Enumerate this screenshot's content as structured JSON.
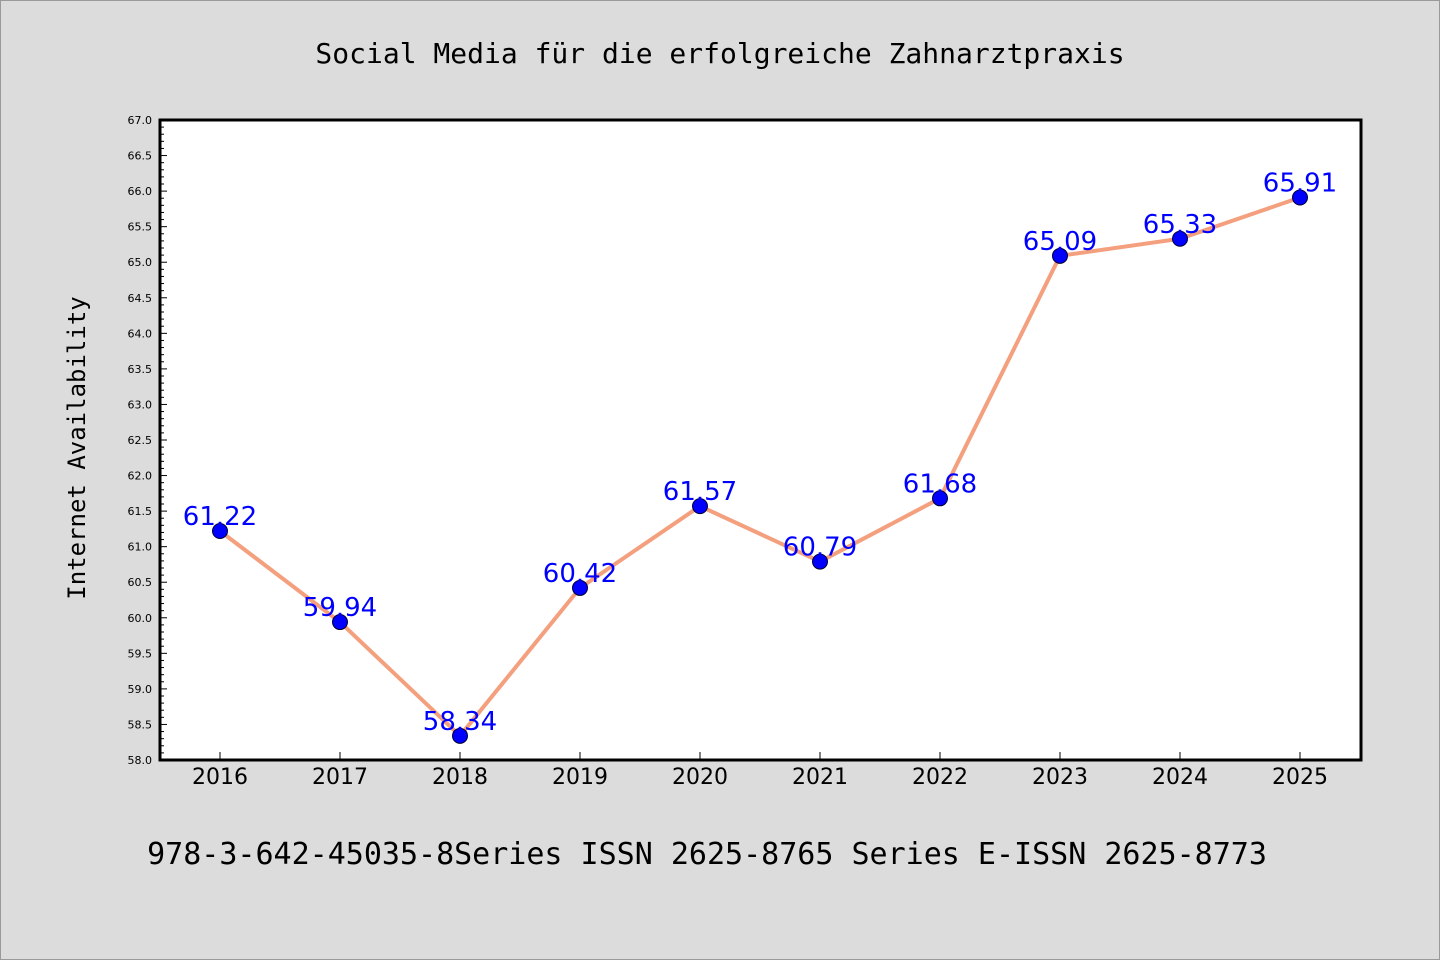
{
  "colors": {
    "background": "#dcdcdc",
    "plot_background": "#ffffff",
    "line": "#f4a07e",
    "marker": "#0000ff",
    "data_label": "#0000ff"
  },
  "footer_text": "978-3-642-45035-8Series ISSN 2625-8765 Series E-ISSN 2625-8773",
  "chart_data": {
    "type": "line",
    "title": "Social Media für die erfolgreiche Zahnarztpraxis",
    "xlabel": "",
    "ylabel": "Internet Availability",
    "categories": [
      "2016",
      "2017",
      "2018",
      "2019",
      "2020",
      "2021",
      "2022",
      "2023",
      "2024",
      "2025"
    ],
    "series": [
      {
        "values": [
          61.22,
          59.94,
          58.34,
          60.42,
          61.57,
          60.79,
          61.68,
          65.09,
          65.33,
          65.91
        ],
        "labels": [
          "61.22",
          "59.94",
          "58.34",
          "60.42",
          "61.57",
          "60.79",
          "61.68",
          "65.09",
          "65.33",
          "65.91"
        ]
      }
    ],
    "ylim": [
      58.0,
      67.0
    ],
    "yticks": [
      "58.0",
      "58.5",
      "59.0",
      "59.5",
      "60.0",
      "60.5",
      "61.0",
      "61.5",
      "62.0",
      "62.5",
      "63.0",
      "63.5",
      "64.0",
      "64.5",
      "65.0",
      "65.5",
      "66.0",
      "66.5",
      "67.0"
    ],
    "grid": false,
    "legend": "none"
  }
}
